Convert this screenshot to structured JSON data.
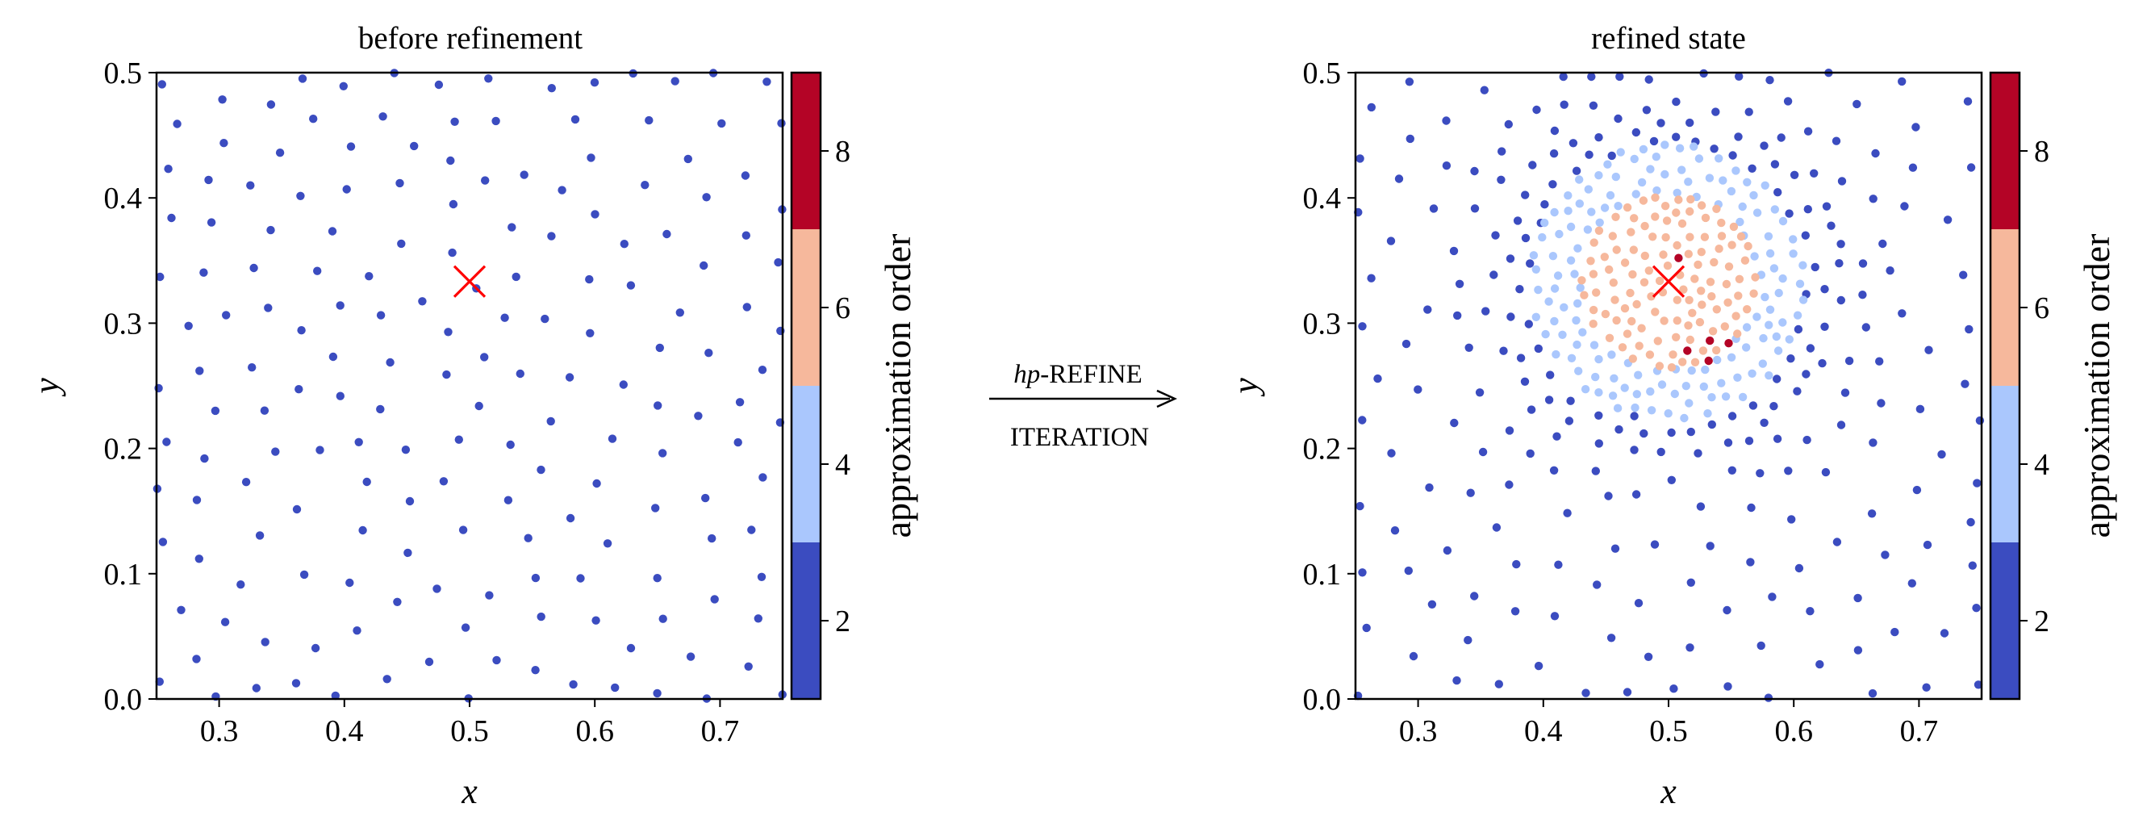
{
  "colors": {
    "order_2": "#3b4cc0",
    "order_4": "#aac7fd",
    "order_6": "#f6b89c",
    "order_8": "#b40426",
    "marker": "#ff0000"
  },
  "arrow": {
    "line1_italic": "hp",
    "line1_rest": "-REFINE",
    "line2": "ITERATION"
  },
  "chart_data": [
    {
      "type": "scatter",
      "title": "before refinement",
      "xlabel": "x",
      "ylabel": "y",
      "xlim": [
        0.25,
        0.75
      ],
      "ylim": [
        0.0,
        0.5
      ],
      "xticks": [
        "0.3",
        "0.4",
        "0.5",
        "0.6",
        "0.7"
      ],
      "yticks": [
        "0.0",
        "0.1",
        "0.2",
        "0.3",
        "0.4",
        "0.5"
      ],
      "colorbar": {
        "label": "approximation order",
        "ticks": [
          "2",
          "4",
          "6",
          "8"
        ],
        "range": [
          1,
          9
        ]
      },
      "marker": {
        "symbol": "x",
        "x": 0.5,
        "y": 0.3333
      },
      "points_description": "roughly uniform cloud of nodes, all with approximation order 2",
      "series": [
        {
          "order": 2,
          "spacing": 0.0215,
          "seed": 17,
          "box": [
            0.25,
            0.75,
            0.0,
            0.5
          ]
        }
      ]
    },
    {
      "type": "scatter",
      "title": "refined state",
      "xlabel": "x",
      "ylabel": "y",
      "xlim": [
        0.25,
        0.75
      ],
      "ylim": [
        0.0,
        0.5
      ],
      "xticks": [
        "0.3",
        "0.4",
        "0.5",
        "0.6",
        "0.7"
      ],
      "yticks": [
        "0.0",
        "0.1",
        "0.2",
        "0.3",
        "0.4",
        "0.5"
      ],
      "colorbar": {
        "label": "approximation order",
        "ticks": [
          "2",
          "4",
          "6",
          "8"
        ],
        "range": [
          1,
          9
        ]
      },
      "marker": {
        "symbol": "x",
        "x": 0.5,
        "y": 0.3333
      },
      "refinement": {
        "center": [
          0.5,
          0.3333
        ],
        "order8_points": [
          [
            0.515,
            0.278
          ],
          [
            0.532,
            0.27
          ],
          [
            0.548,
            0.284
          ],
          [
            0.533,
            0.286
          ],
          [
            0.508,
            0.352
          ]
        ],
        "order6_radius": 0.07,
        "order4_radius": 0.11,
        "dense_radius": 0.14
      },
      "series": [
        {
          "order": 2,
          "spacing": 0.0215,
          "seed": 23,
          "box": [
            0.25,
            0.75,
            0.0,
            0.5
          ]
        },
        {
          "order": 4,
          "spacing": 0.0105,
          "seed": 41,
          "region": "ring 0.07-0.11 around center"
        },
        {
          "order": 6,
          "spacing": 0.0095,
          "seed": 59,
          "region": "disk r<0.07 around center"
        },
        {
          "order": 8,
          "count": 5
        }
      ]
    }
  ]
}
